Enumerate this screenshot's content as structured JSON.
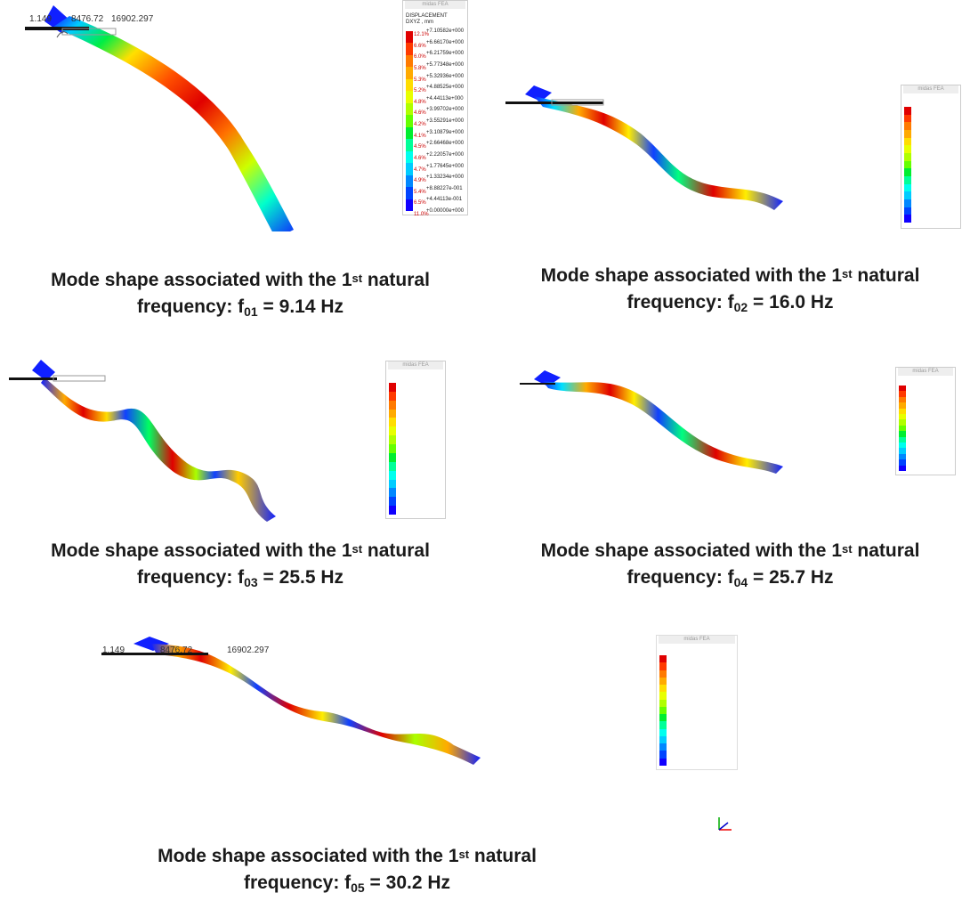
{
  "dimension_labels": {
    "left": "1.149",
    "middle": "8476.72",
    "right": "16902.297"
  },
  "legend": {
    "header": "midas FEA",
    "title_line1": "DISPLACEMENT",
    "title_line2": "DXYZ , mm",
    "colors": [
      "#e00000",
      "#ff3a00",
      "#ff7a00",
      "#ffaa00",
      "#ffdd00",
      "#e8ff00",
      "#b0ff00",
      "#66ff00",
      "#00ee30",
      "#00ff99",
      "#00ffee",
      "#00ccff",
      "#0088ff",
      "#0044ff",
      "#1000ff"
    ]
  },
  "panels": [
    {
      "caption_line1": "Mode shape associated with the 1",
      "caption_sup": "st",
      "caption_line1_tail": " natural",
      "caption_line2_pre": "frequency:  f",
      "caption_sub": "01",
      "caption_line2_post": " = 9.14 Hz",
      "legend_values": [
        "+7.10582e+000",
        "+6.66170e+000",
        "+6.21759e+000",
        "+5.77348e+000",
        "+5.32936e+000",
        "+4.88525e+000",
        "+4.44113e+000",
        "+3.99702e+000",
        "+3.55291e+000",
        "+3.10879e+000",
        "+2.66468e+000",
        "+2.22057e+000",
        "+1.77645e+000",
        "+1.33234e+000",
        "+8.88227e-001",
        "+4.44113e-001",
        "+0.00000e+000"
      ],
      "legend_pcts": [
        "12.1%",
        "6.6%",
        "6.0%",
        "5.8%",
        "5.3%",
        "5.2%",
        "4.8%",
        "4.6%",
        "4.2%",
        "4.1%",
        "4.5%",
        "4.6%",
        "4.7%",
        "4.9%",
        "5.4%",
        "6.5%",
        "11.0%"
      ]
    },
    {
      "caption_line1": "Mode shape associated with the 1",
      "caption_sup": "st",
      "caption_line1_tail": " natural",
      "caption_line2_pre": "frequency:  f",
      "caption_sub": "02",
      "caption_line2_post": " = 16.0 Hz"
    },
    {
      "caption_line1": "Mode shape associated with the 1",
      "caption_sup": "st",
      "caption_line1_tail": " natural",
      "caption_line2_pre": "frequency:  f",
      "caption_sub": "03",
      "caption_line2_post": " = 25.5 Hz"
    },
    {
      "caption_line1": "Mode shape associated with the 1",
      "caption_sup": "st",
      "caption_line1_tail": " natural",
      "caption_line2_pre": "frequency:  f",
      "caption_sub": "04",
      "caption_line2_post": " = 25.7 Hz"
    },
    {
      "caption_line1": "Mode shape associated with the 1",
      "caption_sup": "st",
      "caption_line1_tail": " natural",
      "caption_line2_pre": "frequency:  f",
      "caption_sub": "05",
      "caption_line2_post": " = 30.2 Hz"
    }
  ]
}
